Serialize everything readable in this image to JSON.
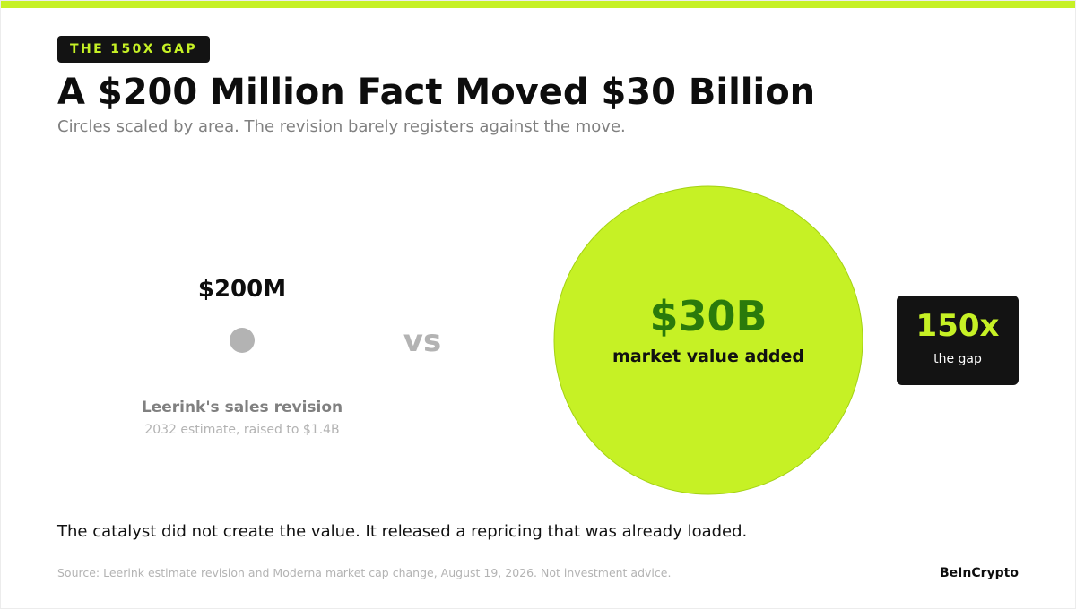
{
  "header": {
    "kicker": "THE 150X GAP",
    "title": "A $200 Million Fact Moved $30 Billion",
    "subtitle": "Circles scaled by area. The revision barely registers against the move."
  },
  "chart_data": {
    "type": "bubble",
    "scaling": "area",
    "items": [
      {
        "value_label": "$200M",
        "value": 200,
        "unit": "USD millions",
        "label": "Leerink's sales revision",
        "sublabel": "2032 estimate, raised to $1.4B",
        "color": "#b3b3b3"
      },
      {
        "value_label": "$30B",
        "value": 30000,
        "unit": "USD millions",
        "label": "market value added",
        "sublabel": "",
        "color": "#c6f125"
      }
    ],
    "separator": "vs",
    "ratio_value": "150x",
    "ratio_caption": "the gap"
  },
  "footer": {
    "takeaway": "The catalyst did not create the value. It released a repricing that was already loaded.",
    "source": "Source: Leerink estimate revision and Moderna market cap change, August 19, 2026. Not investment advice.",
    "brand": "BeInCrypto"
  },
  "colors": {
    "accent": "#c6f125",
    "dark": "#131313",
    "muted": "#808080",
    "big_value_text": "#2a7a0b",
    "big_circle_stroke": "#a4d214"
  }
}
